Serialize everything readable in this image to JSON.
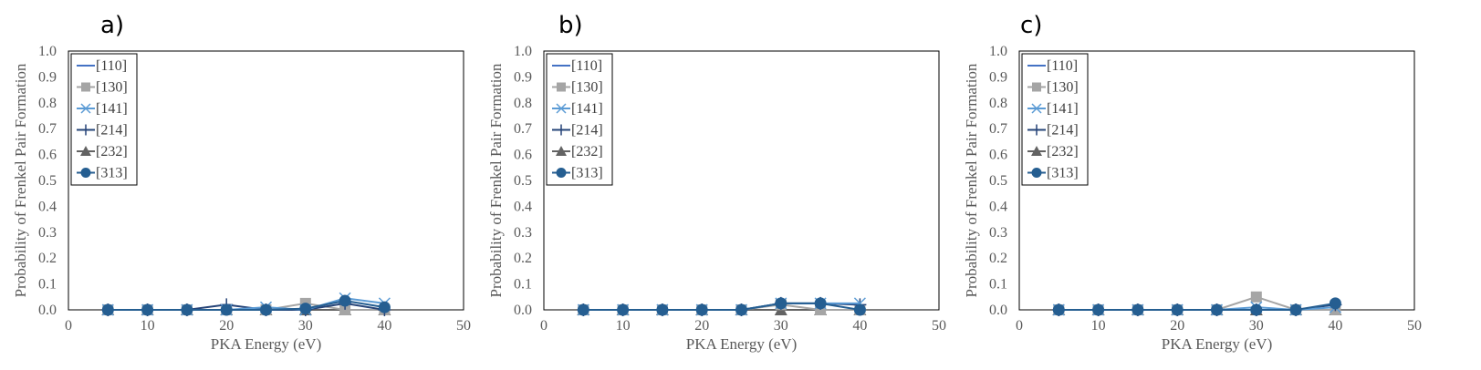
{
  "chart_data": [
    {
      "type": "line",
      "panel_label": "a)",
      "xlabel": "PKA Energy (eV)",
      "ylabel": "Probability of Frenkel Pair Formation",
      "xlim": [
        0,
        50
      ],
      "ylim": [
        0,
        1.0
      ],
      "x_ticks": [
        "0",
        "10",
        "20",
        "30",
        "40",
        "50"
      ],
      "y_ticks": [
        "0.0",
        "0.1",
        "0.2",
        "0.3",
        "0.4",
        "0.5",
        "0.6",
        "0.7",
        "0.8",
        "0.9",
        "1.0"
      ],
      "grid": false,
      "legend_position": "top-left",
      "x": [
        5,
        10,
        15,
        20,
        25,
        30,
        35,
        40
      ],
      "series": [
        {
          "name": "[110]",
          "marker": "none",
          "color": "#4472C4",
          "values": [
            0,
            0,
            0,
            0,
            0,
            0,
            0,
            0
          ]
        },
        {
          "name": "[130]",
          "marker": "square",
          "color": "#A5A5A5",
          "values": [
            0,
            0,
            0,
            0,
            0,
            0.025,
            0,
            0
          ]
        },
        {
          "name": "[141]",
          "marker": "x",
          "color": "#5B9BD5",
          "values": [
            0,
            0,
            0,
            0,
            0.01,
            0,
            0.045,
            0.025
          ]
        },
        {
          "name": "[214]",
          "marker": "plus",
          "color": "#264478",
          "values": [
            0,
            0,
            0,
            0.02,
            0,
            0,
            0.025,
            0
          ]
        },
        {
          "name": "[232]",
          "marker": "triangle",
          "color": "#636363",
          "values": [
            0,
            0,
            0,
            0,
            0,
            0,
            0,
            0
          ]
        },
        {
          "name": "[313]",
          "marker": "circle",
          "color": "#255E91",
          "values": [
            0,
            0,
            0,
            0,
            0,
            0.005,
            0.035,
            0.01
          ]
        }
      ]
    },
    {
      "type": "line",
      "panel_label": "b)",
      "xlabel": "PKA Energy (eV)",
      "ylabel": "Probability of Frenkel Pair Formation",
      "xlim": [
        0,
        50
      ],
      "ylim": [
        0,
        1.0
      ],
      "x_ticks": [
        "0",
        "10",
        "20",
        "30",
        "40",
        "50"
      ],
      "y_ticks": [
        "0.0",
        "0.1",
        "0.2",
        "0.3",
        "0.4",
        "0.5",
        "0.6",
        "0.7",
        "0.8",
        "0.9",
        "1.0"
      ],
      "grid": false,
      "legend_position": "top-left",
      "x": [
        5,
        10,
        15,
        20,
        25,
        30,
        35,
        40
      ],
      "series": [
        {
          "name": "[110]",
          "marker": "none",
          "color": "#4472C4",
          "values": [
            0,
            0,
            0,
            0,
            0,
            0,
            0,
            0
          ]
        },
        {
          "name": "[130]",
          "marker": "square",
          "color": "#A5A5A5",
          "values": [
            0,
            0,
            0,
            0,
            0,
            0.02,
            0,
            0
          ]
        },
        {
          "name": "[141]",
          "marker": "x",
          "color": "#5B9BD5",
          "values": [
            0,
            0,
            0,
            0,
            0,
            0.025,
            0.025,
            0.025
          ]
        },
        {
          "name": "[214]",
          "marker": "plus",
          "color": "#264478",
          "values": [
            0,
            0,
            0,
            0,
            0,
            0.025,
            0.025,
            0.02
          ]
        },
        {
          "name": "[232]",
          "marker": "triangle",
          "color": "#636363",
          "values": [
            0,
            0,
            0,
            0,
            0,
            0,
            0,
            0
          ]
        },
        {
          "name": "[313]",
          "marker": "circle",
          "color": "#255E91",
          "values": [
            0,
            0,
            0,
            0,
            0,
            0.025,
            0.025,
            0
          ]
        }
      ]
    },
    {
      "type": "line",
      "panel_label": "c)",
      "xlabel": "PKA Energy (eV)",
      "ylabel": "Probability of Frenkel Pair Formation",
      "xlim": [
        0,
        50
      ],
      "ylim": [
        0,
        1.0
      ],
      "x_ticks": [
        "0",
        "10",
        "20",
        "30",
        "40",
        "50"
      ],
      "y_ticks": [
        "0.0",
        "0.1",
        "0.2",
        "0.3",
        "0.4",
        "0.5",
        "0.6",
        "0.7",
        "0.8",
        "0.9",
        "1.0"
      ],
      "grid": false,
      "legend_position": "top-left",
      "x": [
        5,
        10,
        15,
        20,
        25,
        30,
        35,
        40
      ],
      "series": [
        {
          "name": "[110]",
          "marker": "none",
          "color": "#4472C4",
          "values": [
            0,
            0,
            0,
            0,
            0,
            0,
            0,
            0
          ]
        },
        {
          "name": "[130]",
          "marker": "square",
          "color": "#A5A5A5",
          "values": [
            0,
            0,
            0,
            0,
            0,
            0.05,
            0,
            0
          ]
        },
        {
          "name": "[141]",
          "marker": "x",
          "color": "#5B9BD5",
          "values": [
            0,
            0,
            0,
            0,
            0,
            0.01,
            0,
            0.01
          ]
        },
        {
          "name": "[214]",
          "marker": "plus",
          "color": "#264478",
          "values": [
            0,
            0,
            0,
            0,
            0,
            0,
            0,
            0.02
          ]
        },
        {
          "name": "[232]",
          "marker": "triangle",
          "color": "#636363",
          "values": [
            0,
            0,
            0,
            0,
            0,
            0,
            0,
            0
          ]
        },
        {
          "name": "[313]",
          "marker": "circle",
          "color": "#255E91",
          "values": [
            0,
            0,
            0,
            0,
            0,
            0,
            0,
            0.025
          ]
        }
      ]
    }
  ]
}
